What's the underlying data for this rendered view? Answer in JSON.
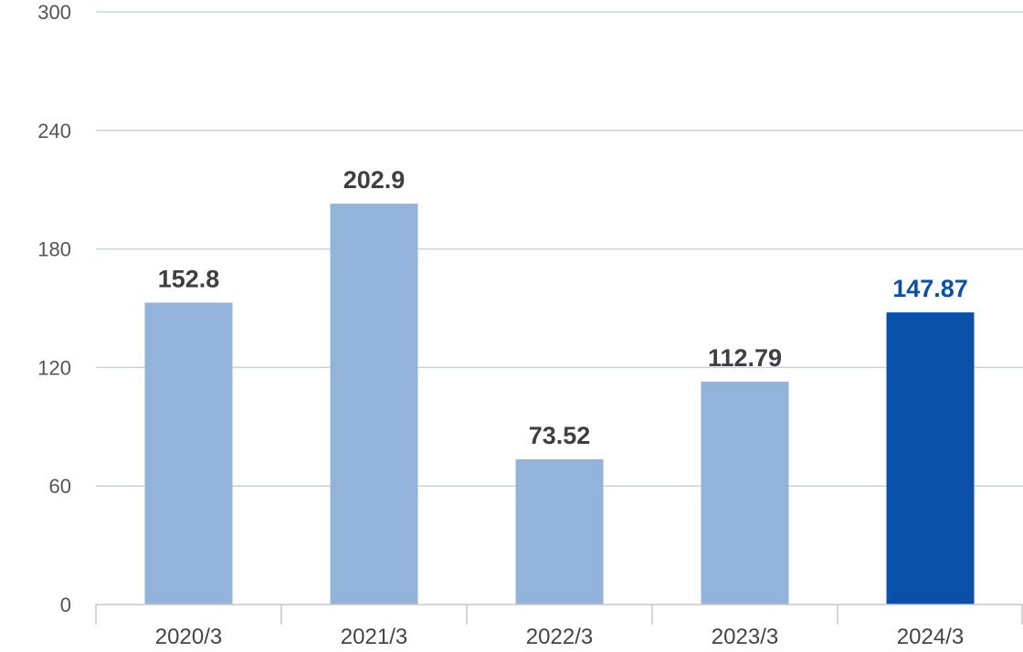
{
  "chart_data": {
    "type": "bar",
    "categories": [
      "2020/3",
      "2021/3",
      "2022/3",
      "2023/3",
      "2024/3"
    ],
    "values": [
      152.8,
      202.9,
      73.52,
      112.79,
      147.87
    ],
    "value_labels": [
      "152.8",
      "202.9",
      "73.52",
      "112.79",
      "147.87"
    ],
    "title": "",
    "xlabel": "",
    "ylabel": "",
    "ylim": [
      0,
      300
    ],
    "yticks": [
      "0",
      "60",
      "120",
      "180",
      "240",
      "300"
    ],
    "grid": true,
    "highlight_index": 4,
    "colors": {
      "bar": "#94b3da",
      "bar_highlight": "#0a50a9",
      "label": "#3f3f3f",
      "label_highlight": "#0a50a9",
      "grid": "#c9d3de",
      "axis": "#c8c8c8"
    }
  }
}
